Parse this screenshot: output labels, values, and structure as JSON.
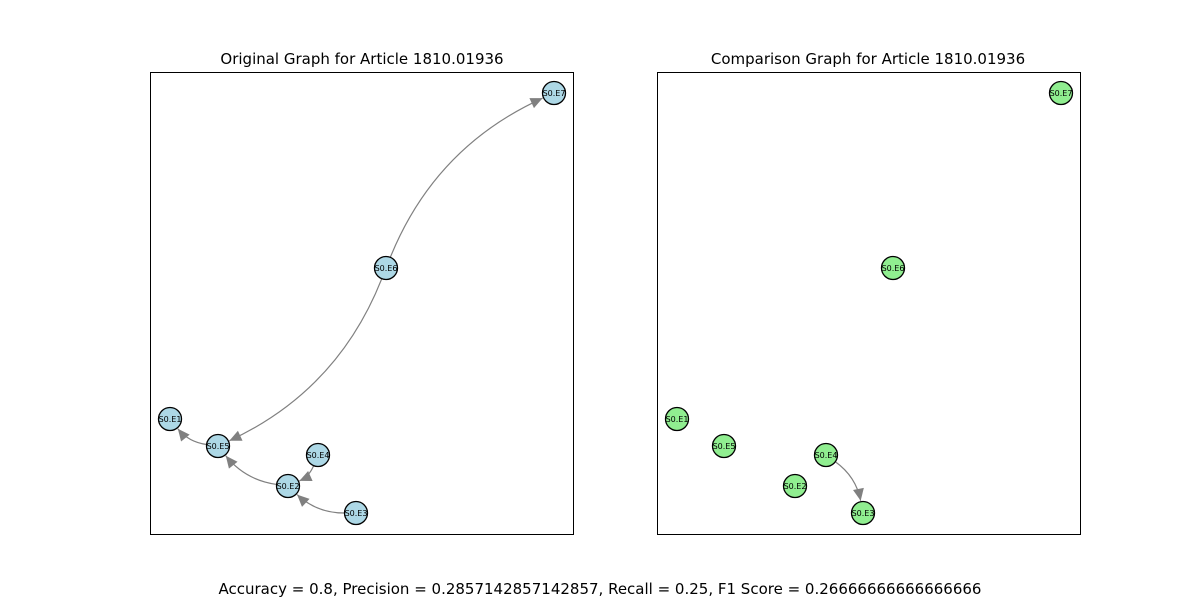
{
  "figure": {
    "metrics_text": "Accuracy = 0.8, Precision = 0.2857142857142857, Recall = 0.25, F1 Score = 0.26666666666666666"
  },
  "panels": [
    {
      "id": "original",
      "title": "Original Graph for Article 1810.01936",
      "node_color": "#add8e6",
      "nodes": [
        "S0.E1",
        "S0.E2",
        "S0.E3",
        "S0.E4",
        "S0.E5",
        "S0.E6",
        "S0.E7"
      ],
      "edges": [
        {
          "from": "S0.E6",
          "to": "S0.E7"
        },
        {
          "from": "S0.E6",
          "to": "S0.E5"
        },
        {
          "from": "S0.E5",
          "to": "S0.E1"
        },
        {
          "from": "S0.E2",
          "to": "S0.E5"
        },
        {
          "from": "S0.E4",
          "to": "S0.E2"
        },
        {
          "from": "S0.E3",
          "to": "S0.E2"
        }
      ]
    },
    {
      "id": "comparison",
      "title": "Comparison Graph for Article 1810.01936",
      "node_color": "#90ee90",
      "nodes": [
        "S0.E1",
        "S0.E2",
        "S0.E3",
        "S0.E4",
        "S0.E5",
        "S0.E6",
        "S0.E7"
      ],
      "edges": [
        {
          "from": "S0.E4",
          "to": "S0.E3"
        }
      ]
    }
  ]
}
